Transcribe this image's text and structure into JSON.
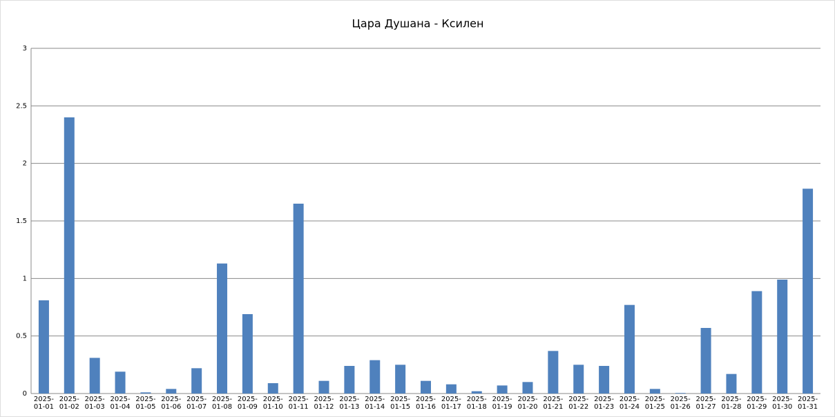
{
  "chart_data": {
    "type": "bar",
    "title": "Цара Душана - Ксилен",
    "categories": [
      "2025-01-01",
      "2025-01-02",
      "2025-01-03",
      "2025-01-04",
      "2025-01-05",
      "2025-01-06",
      "2025-01-07",
      "2025-01-08",
      "2025-01-09",
      "2025-01-10",
      "2025-01-11",
      "2025-01-12",
      "2025-01-13",
      "2025-01-14",
      "2025-01-15",
      "2025-01-16",
      "2025-01-17",
      "2025-01-18",
      "2025-01-19",
      "2025-01-20",
      "2025-01-21",
      "2025-01-22",
      "2025-01-23",
      "2025-01-24",
      "2025-01-25",
      "2025-01-26",
      "2025-01-27",
      "2025-01-28",
      "2025-01-29",
      "2025-01-30",
      "2025-01-31"
    ],
    "values": [
      0.81,
      2.4,
      0.31,
      0.19,
      0.01,
      0.04,
      0.22,
      1.13,
      0.69,
      0.09,
      1.65,
      0.11,
      0.24,
      0.29,
      0.25,
      0.11,
      0.08,
      0.02,
      0.07,
      0.1,
      0.37,
      0.25,
      0.24,
      0.77,
      0.04,
      0.005,
      0.57,
      0.17,
      0.89,
      0.99,
      1.78
    ],
    "color": "#4f81bd",
    "ylim": [
      0,
      3
    ],
    "yticks": [
      0,
      0.5,
      1,
      1.5,
      2,
      2.5,
      3
    ],
    "grid": true
  }
}
